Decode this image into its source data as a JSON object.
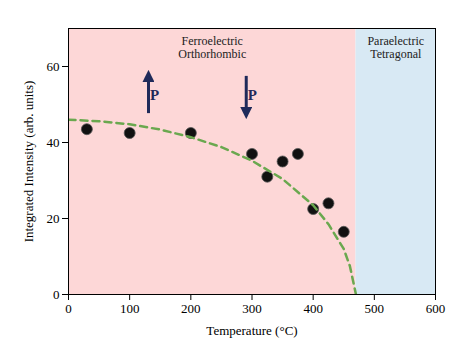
{
  "chart_data": {
    "type": "scatter",
    "x_label": "Temperature (°C)",
    "y_label": "Integrated Intensity (arb. units)",
    "xlim": [
      0,
      600
    ],
    "xticks": [
      0,
      100,
      200,
      300,
      400,
      500,
      600
    ],
    "ylim": [
      0,
      70
    ],
    "yticks": [
      0,
      20,
      40,
      60
    ],
    "grid": false,
    "regions": [
      {
        "label": "Ferroelectric Orthorhombic",
        "x": [
          0,
          470
        ],
        "color": "#fdd7d7"
      },
      {
        "label": "Paraelectric Tetragonal",
        "x": [
          470,
          600
        ],
        "color": "#d8e9f4"
      }
    ],
    "annotations": [
      "P",
      "P"
    ],
    "series": [
      {
        "type": "scatter",
        "marker": "circle",
        "color": "#111111",
        "x": [
          30,
          100,
          200,
          300,
          325,
          350,
          375,
          400,
          425,
          450
        ],
        "values": [
          43.5,
          42.5,
          42.5,
          37,
          31,
          35,
          37,
          22.5,
          24,
          16.5
        ]
      },
      {
        "type": "line",
        "line_style": "dashed",
        "color": "#6aa84f",
        "x": [
          0,
          50,
          100,
          150,
          200,
          250,
          300,
          350,
          400,
          425,
          450,
          460,
          470
        ],
        "values": [
          46,
          45.6,
          44.8,
          43.4,
          41.4,
          38.8,
          35.2,
          30.4,
          23.5,
          18.5,
          12,
          7.5,
          0
        ]
      }
    ]
  }
}
